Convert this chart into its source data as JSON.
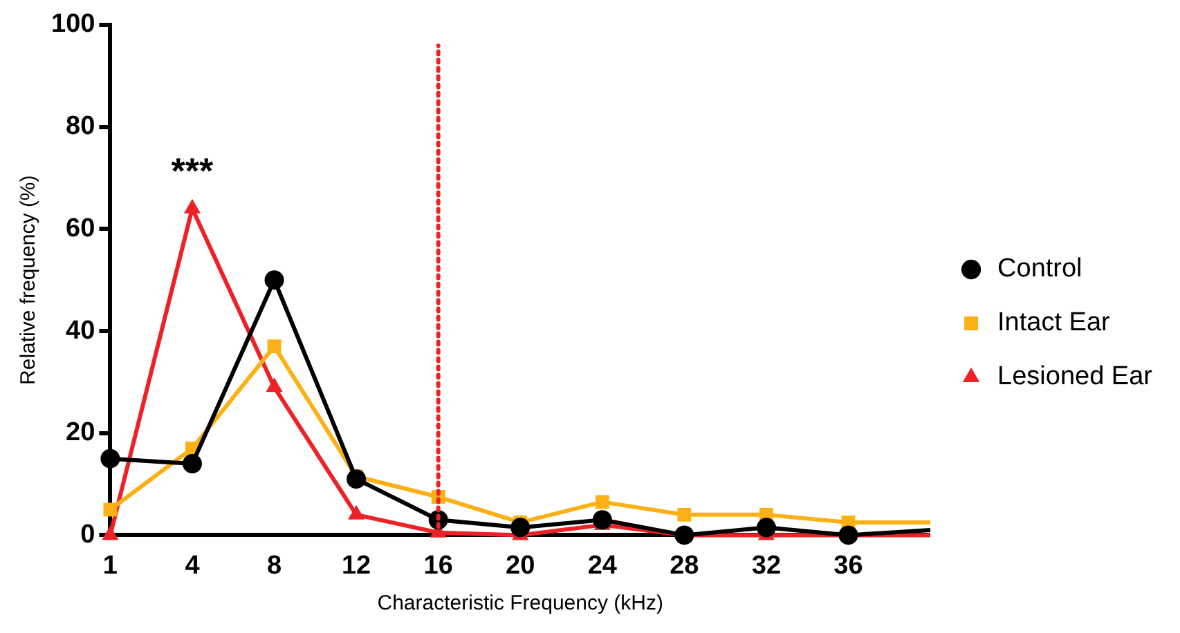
{
  "chart_data": {
    "type": "line",
    "xlabel": "Characteristic Frequency (kHz)",
    "ylabel": "Relative frequency (%)",
    "categories": [
      "1",
      "4",
      "8",
      "12",
      "16",
      "20",
      "24",
      "28",
      "32",
      "36",
      null
    ],
    "series": [
      {
        "name": "Control",
        "color": "#000000",
        "marker": "circle",
        "values": [
          15,
          14,
          50,
          11,
          3,
          1.5,
          3,
          0,
          1.5,
          0,
          1
        ]
      },
      {
        "name": "Intact Ear",
        "color": "#fbb116",
        "marker": "square",
        "values": [
          5,
          17,
          37,
          11.5,
          7.5,
          2.5,
          6.5,
          4,
          4,
          2.5,
          2.5
        ]
      },
      {
        "name": "Lesioned Ear",
        "color": "#ec2227",
        "marker": "triangle",
        "values": [
          0,
          64,
          29,
          4,
          0.5,
          0,
          2,
          0,
          0,
          0,
          0
        ]
      }
    ],
    "ylim": [
      0,
      100
    ],
    "yticks": [
      0,
      20,
      40,
      60,
      80,
      100
    ],
    "grid": false,
    "legend": "right",
    "ref_lines": [
      {
        "axis": "x",
        "value": "16",
        "color": "#ec2227",
        "line_style": "dotted"
      }
    ],
    "annotations": [
      "***"
    ]
  }
}
